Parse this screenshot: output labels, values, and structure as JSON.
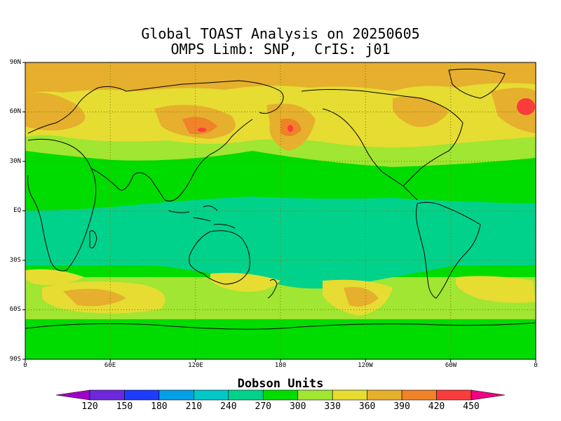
{
  "title_line1": "Global TOAST Analysis on 20250605",
  "title_line2": "OMPS Limb: SNP,  CrIS: j01",
  "lat_ticks": [
    "90N",
    "60N",
    "30N",
    "EQ",
    "30S",
    "60S",
    "90S"
  ],
  "lon_ticks": [
    "0",
    "60E",
    "120E",
    "180",
    "120W",
    "60W",
    "0"
  ],
  "colorbar": {
    "title": "Dobson Units",
    "labels": [
      "120",
      "150",
      "180",
      "210",
      "240",
      "270",
      "300",
      "330",
      "360",
      "390",
      "420",
      "450"
    ],
    "colors": [
      "#a000c8",
      "#6e28dc",
      "#1e3cff",
      "#00a0e6",
      "#00c8c8",
      "#00d28c",
      "#00dc00",
      "#a0e632",
      "#e6dc32",
      "#e6af2d",
      "#f08228",
      "#fa3c3c",
      "#f00082"
    ]
  },
  "map_palette": {
    "land_lines": "#000000",
    "grid": "#7a7a00"
  }
}
